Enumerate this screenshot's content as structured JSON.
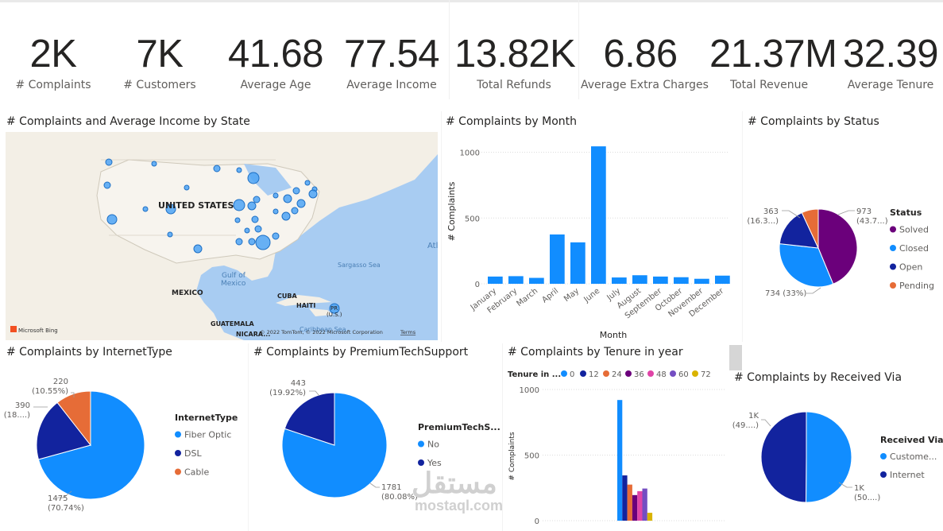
{
  "kpis": [
    {
      "value": "2K",
      "label": "# Complaints"
    },
    {
      "value": "7K",
      "label": "# Customers"
    },
    {
      "value": "41.68",
      "label": "Average Age"
    },
    {
      "value": "77.54",
      "label": "Average Income"
    },
    {
      "value": "13.82K",
      "label": "Total Refunds"
    },
    {
      "value": "6.86",
      "label": "Average Extra Charges"
    },
    {
      "value": "21.37M",
      "label": "Total Revenue"
    },
    {
      "value": "32.39",
      "label": "Average Tenure"
    }
  ],
  "map": {
    "title": "# Complaints and Average Income by State",
    "labels": {
      "us": "UNITED STATES",
      "gulf1": "Gulf of",
      "gulf2": "Mexico",
      "mexico": "MEXICO",
      "cuba": "CUBA",
      "haiti": "HAITI",
      "guatemala": "GUATEMALA",
      "nicaragua": "NICARA...",
      "sargasso": "Sargasso Sea",
      "caribbean": "Caribbean Sea",
      "atl": "Atl",
      "pr": "PR",
      "pr2": "(U.S.)",
      "bing": "Microsoft Bing",
      "copyright": "© 2022 TomTom, © 2022 Microsoft Corporation",
      "terms": "Terms"
    }
  },
  "month_chart": {
    "title": "# Complaints by Month",
    "chart_data": {
      "type": "bar",
      "categories": [
        "January",
        "February",
        "March",
        "April",
        "May",
        "June",
        "July",
        "August",
        "September",
        "October",
        "November",
        "December"
      ],
      "values": [
        55,
        58,
        45,
        375,
        315,
        1045,
        48,
        65,
        55,
        50,
        38,
        62
      ],
      "xlabel": "Month",
      "ylabel": "# Complaints",
      "ylim": [
        0,
        1100
      ],
      "yticks": [
        "0",
        "500",
        "1000"
      ],
      "bar_color": "#118DFF",
      "grid": true
    }
  },
  "status_chart": {
    "title": "# Complaints by Status",
    "chart_data": {
      "type": "pie",
      "legend_title": "Status",
      "slices": [
        {
          "name": "Solved",
          "value": 973,
          "color": "#6B007B"
        },
        {
          "name": "Closed",
          "value": 734,
          "color": "#118DFF"
        },
        {
          "name": "Open",
          "value": 363,
          "color": "#12239E"
        },
        {
          "name": "Pending",
          "value": 154,
          "color": "#E66C37"
        }
      ],
      "data_labels": [
        {
          "line1": "973",
          "line2": "(43.7...)"
        },
        {
          "line1": "734 (33%)",
          "line2": ""
        },
        {
          "line1": "363",
          "line2": "(16.3...)"
        }
      ]
    }
  },
  "internet_chart": {
    "title": "# Complaints by InternetType",
    "chart_data": {
      "type": "pie",
      "legend_title": "InternetType",
      "slices": [
        {
          "name": "Fiber Optic",
          "value": 1475,
          "color": "#118DFF"
        },
        {
          "name": "DSL",
          "value": 390,
          "color": "#12239E"
        },
        {
          "name": "Cable",
          "value": 220,
          "color": "#E66C37"
        }
      ],
      "data_labels": [
        {
          "line1": "1475",
          "line2": "(70.74%)"
        },
        {
          "line1": "390",
          "line2": "(18....)"
        },
        {
          "line1": "220",
          "line2": "(10.55%)"
        }
      ]
    }
  },
  "premium_chart": {
    "title": "# Complaints by PremiumTechSupport",
    "chart_data": {
      "type": "pie",
      "legend_title": "PremiumTechS...",
      "slices": [
        {
          "name": "No",
          "value": 1781,
          "color": "#118DFF"
        },
        {
          "name": "Yes",
          "value": 443,
          "color": "#12239E"
        }
      ],
      "data_labels": [
        {
          "line1": "1781",
          "line2": "(80.08%)"
        },
        {
          "line1": "443",
          "line2": "(19.92%)"
        }
      ]
    }
  },
  "tenure_chart": {
    "title": "# Complaints by Tenure in year",
    "chart_data": {
      "type": "bar",
      "legend_title": "Tenure in ...",
      "series": [
        {
          "name": "0",
          "value": 920,
          "color": "#118DFF"
        },
        {
          "name": "12",
          "value": 345,
          "color": "#12239E"
        },
        {
          "name": "24",
          "value": 275,
          "color": "#E66C37"
        },
        {
          "name": "36",
          "value": 195,
          "color": "#6B007B"
        },
        {
          "name": "48",
          "value": 225,
          "color": "#E044A7"
        },
        {
          "name": "60",
          "value": 245,
          "color": "#744EC2"
        },
        {
          "name": "72",
          "value": 60,
          "color": "#D9B300"
        }
      ],
      "ylabel": "# Complaints",
      "ylim": [
        0,
        1000
      ],
      "yticks": [
        "0",
        "500",
        "1000"
      ]
    }
  },
  "received_chart": {
    "title": "# Complaints by Received Via",
    "chart_data": {
      "type": "pie",
      "legend_title": "Received Via",
      "slices": [
        {
          "name": "Custome...",
          "value": 1115,
          "color": "#118DFF"
        },
        {
          "name": "Internet",
          "value": 1109,
          "color": "#12239E"
        }
      ],
      "data_labels": [
        {
          "line1": "1K",
          "line2": "(50....)"
        },
        {
          "line1": "1K",
          "line2": "(49....)"
        }
      ]
    }
  },
  "watermark": {
    "arabic": "مستقل",
    "latin": "mostaql.com"
  }
}
